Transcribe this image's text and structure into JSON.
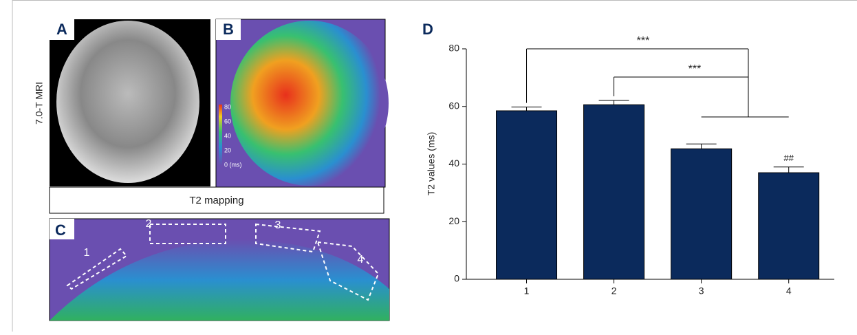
{
  "panels": {
    "a": {
      "label": "A",
      "side_label": "7.0-T MRI"
    },
    "b": {
      "label": "B",
      "colorbar": [
        "80",
        "60",
        "40",
        "20",
        "0 (ms)"
      ]
    },
    "caption": "T2 mapping",
    "c": {
      "label": "C",
      "regions": [
        "1",
        "2",
        "3",
        "4"
      ]
    },
    "d": {
      "label": "D"
    }
  },
  "chart_data": {
    "type": "bar",
    "y_label": "T2 values (ms)",
    "categories": [
      "1",
      "2",
      "3",
      "4"
    ],
    "values": [
      58.5,
      60.6,
      45.3,
      37
    ],
    "errors": [
      1.3,
      1.5,
      1.7,
      2
    ],
    "color": "#0b2a5c",
    "ylim": [
      0,
      80
    ],
    "yticks": [
      0,
      20,
      40,
      60,
      80
    ],
    "annotations": [
      "***",
      "***",
      "##"
    ]
  }
}
